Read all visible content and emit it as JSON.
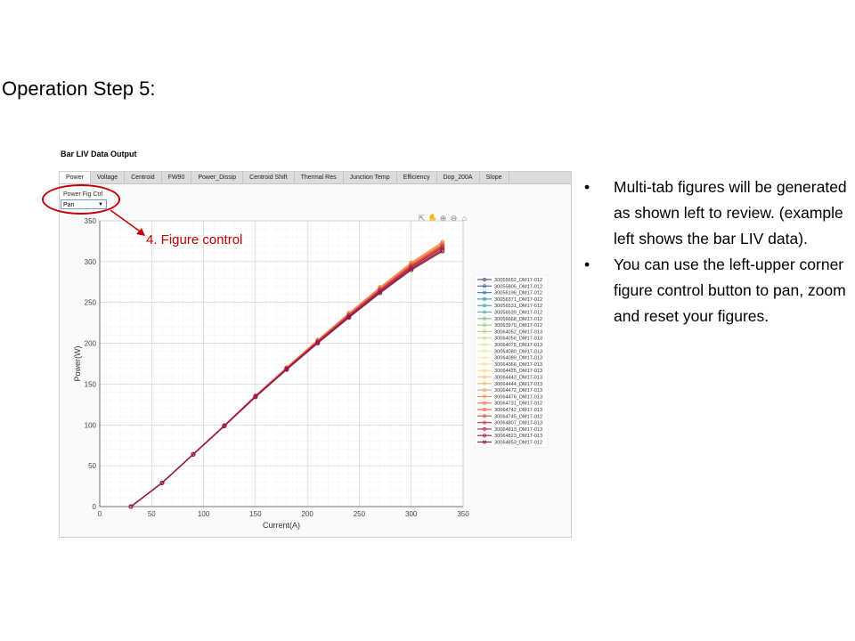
{
  "slide": {
    "title": "Operation Step 5:",
    "annotation": "4. Figure control"
  },
  "app": {
    "title": "Bar LIV Data Output",
    "tabs": [
      "Power",
      "Voltage",
      "Centroid",
      "FW90",
      "Power_Dissip",
      "Centroid Shift",
      "Thermal Res",
      "Junction Temp",
      "Efficiency",
      "Dop_200A",
      "Slope"
    ],
    "active_tab": "Power",
    "fig_ctrl": {
      "label": "Power Fig Ctrl",
      "value": "Pan"
    },
    "toolbar_icons": [
      "export-icon",
      "pan-hand-icon",
      "zoom-in-icon",
      "zoom-out-icon",
      "home-icon"
    ]
  },
  "bullets": [
    "Multi-tab figures will be generated as shown left to review. (example left shows the bar LIV data).",
    "You can use the left-upper corner figure control button to pan, zoom and reset your figures."
  ],
  "chart_data": {
    "type": "line",
    "xlabel": "Current(A)",
    "ylabel": "Power(W)",
    "xlim": [
      0,
      350
    ],
    "ylim": [
      0,
      350
    ],
    "xticks": [
      0,
      50,
      100,
      150,
      200,
      250,
      300,
      350
    ],
    "yticks": [
      0,
      50,
      100,
      150,
      200,
      250,
      300,
      350
    ],
    "grid": true,
    "legend_position": "right",
    "x": [
      30,
      60,
      90,
      120,
      150,
      180,
      210,
      240,
      270,
      300,
      330
    ],
    "series_base": [
      0,
      29,
      64,
      99,
      135,
      169,
      202,
      234,
      265,
      294,
      318
    ],
    "series": [
      {
        "name": "30055652_DM17-012",
        "color": "#5b4f9e",
        "offset": 2
      },
      {
        "name": "30055805_DM17-012",
        "color": "#4a6aa8",
        "offset": 1
      },
      {
        "name": "30056196_DM17-012",
        "color": "#3f84b0",
        "offset": 2
      },
      {
        "name": "30056371_DM17-012",
        "color": "#3d98ae",
        "offset": 0
      },
      {
        "name": "30056531_DM17-012",
        "color": "#4aaaa5",
        "offset": -1
      },
      {
        "name": "30056539_DM17-012",
        "color": "#62b79a",
        "offset": -2
      },
      {
        "name": "30056668_DM17-012",
        "color": "#7dc28f",
        "offset": -4
      },
      {
        "name": "30063970_DM17-012",
        "color": "#9bcc88",
        "offset": -5
      },
      {
        "name": "30064052_DM17-013",
        "color": "#b6d688",
        "offset": -6
      },
      {
        "name": "30064056_DM17-013",
        "color": "#cde08d",
        "offset": -4
      },
      {
        "name": "30064075_DM17-013",
        "color": "#dfe898",
        "offset": -3
      },
      {
        "name": "30064080_DM17-013",
        "color": "#eeeea6",
        "offset": -2
      },
      {
        "name": "30064089_DM17-013",
        "color": "#f6edaa",
        "offset": -1
      },
      {
        "name": "30064366_DM17-013",
        "color": "#f9e3a0",
        "offset": 0
      },
      {
        "name": "30064425_DM17-013",
        "color": "#fad792",
        "offset": 1
      },
      {
        "name": "30064443_DM17-013",
        "color": "#fbc881",
        "offset": 2
      },
      {
        "name": "30064444_DM17-013",
        "color": "#fbb770",
        "offset": 4
      },
      {
        "name": "30064472_DM17-013",
        "color": "#f9a562",
        "offset": 6
      },
      {
        "name": "30064476_DM17-013",
        "color": "#f59157",
        "offset": 5
      },
      {
        "name": "30064731_DM17-012",
        "color": "#ef7c4f",
        "offset": 3
      },
      {
        "name": "30064742_DM17-013",
        "color": "#e6674b",
        "offset": 2
      },
      {
        "name": "30064745_DM17-012",
        "color": "#d9524a",
        "offset": 1
      },
      {
        "name": "30064807_DM17-013",
        "color": "#c93f4b",
        "offset": 0
      },
      {
        "name": "30064813_DM17-013",
        "color": "#b62d4d",
        "offset": -1
      },
      {
        "name": "30064823_DM17-013",
        "color": "#a3204f",
        "offset": -3
      },
      {
        "name": "30064853_DM17-012",
        "color": "#8e1450",
        "offset": -5
      }
    ]
  }
}
